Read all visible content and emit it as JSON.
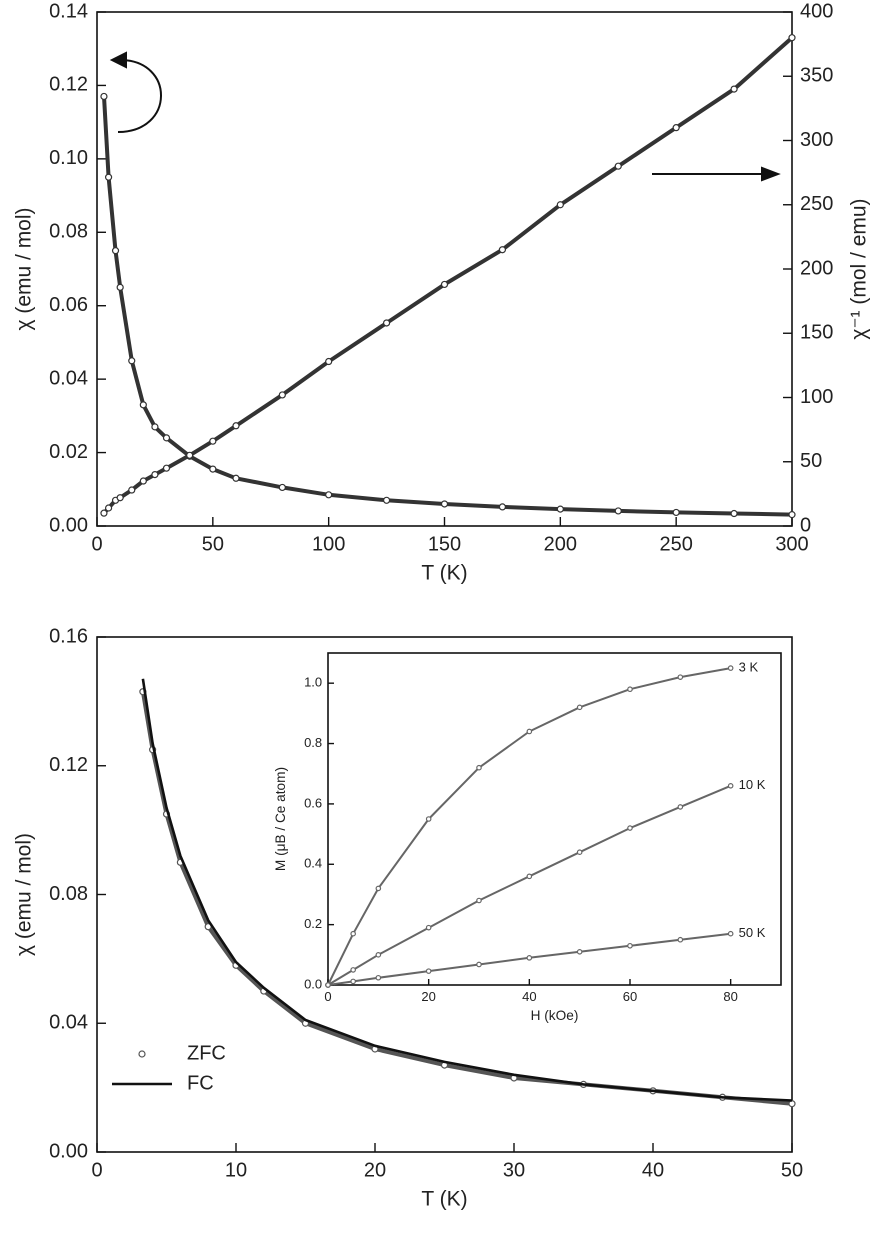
{
  "chart_data": [
    {
      "type": "scatter",
      "xlabel": "T (K)",
      "ylabel": "χ (emu / mol)",
      "y2label": "χ⁻¹ (mol / emu)",
      "xlim": [
        0,
        300
      ],
      "xticks": [
        0,
        50,
        100,
        150,
        200,
        250,
        300
      ],
      "ylim": [
        0,
        0.14
      ],
      "yticks": [
        {
          "value": 0,
          "label": "0.00"
        },
        {
          "value": 0.02,
          "label": "0.02"
        },
        {
          "value": 0.04,
          "label": "0.04"
        },
        {
          "value": 0.06,
          "label": "0.06"
        },
        {
          "value": 0.08,
          "label": "0.08"
        },
        {
          "value": 0.1,
          "label": "0.10"
        },
        {
          "value": 0.12,
          "label": "0.12"
        },
        {
          "value": 0.14,
          "label": "0.14"
        }
      ],
      "y2lim": [
        0,
        400
      ],
      "y2ticks": [
        0,
        50,
        100,
        150,
        200,
        250,
        300,
        350,
        400
      ],
      "x": [
        3,
        5,
        8,
        10,
        15,
        20,
        25,
        30,
        40,
        50,
        60,
        80,
        100,
        125,
        150,
        175,
        200,
        225,
        250,
        275,
        300
      ],
      "series": [
        {
          "mode": "markers",
          "color": "#333333",
          "values": [
            0.117,
            0.095,
            0.075,
            0.065,
            0.045,
            0.033,
            0.027,
            0.024,
            0.019,
            0.0155,
            0.013,
            0.0105,
            0.0085,
            0.007,
            0.006,
            0.0052,
            0.0046,
            0.0041,
            0.0037,
            0.0034,
            0.0031
          ]
        },
        {
          "mode": "markers",
          "color": "#333333",
          "axis": "y2",
          "values": [
            10,
            14,
            20,
            22,
            28,
            35,
            40,
            45,
            55,
            66,
            78,
            102,
            128,
            158,
            188,
            215,
            250,
            280,
            310,
            340,
            380
          ]
        }
      ]
    },
    {
      "type": "scatter",
      "xlabel": "T (K)",
      "ylabel": "χ (emu / mol)",
      "legend": "lower left",
      "xlim": [
        0,
        50
      ],
      "xticks": [
        0,
        10,
        20,
        30,
        40,
        50
      ],
      "ylim": [
        0,
        0.16
      ],
      "yticks": [
        {
          "value": 0,
          "label": "0.00"
        },
        {
          "value": 0.04,
          "label": "0.04"
        },
        {
          "value": 0.08,
          "label": "0.08"
        },
        {
          "value": 0.12,
          "label": "0.12"
        },
        {
          "value": 0.16,
          "label": "0.16"
        }
      ],
      "x": [
        3.3,
        4,
        5,
        6,
        8,
        10,
        12,
        15,
        20,
        25,
        30,
        35,
        40,
        45,
        50
      ],
      "series": [
        {
          "name": "ZFC",
          "mode": "markers",
          "color": "#555555",
          "values": [
            0.143,
            0.125,
            0.105,
            0.09,
            0.07,
            0.058,
            0.05,
            0.04,
            0.032,
            0.027,
            0.023,
            0.021,
            0.019,
            0.017,
            0.015
          ]
        },
        {
          "name": "FC",
          "mode": "line",
          "color": "#111111",
          "values": [
            0.147,
            0.127,
            0.107,
            0.092,
            0.072,
            0.059,
            0.051,
            0.041,
            0.033,
            0.028,
            0.024,
            0.021,
            0.019,
            0.017,
            0.016
          ]
        }
      ]
    },
    {
      "type": "scatter",
      "xlabel": "H (kOe)",
      "ylabel": "M (μB / Ce atom)",
      "legend": "end",
      "xlim": [
        0,
        90
      ],
      "xticks": [
        0,
        20,
        40,
        60,
        80
      ],
      "ylim": [
        0,
        1.1
      ],
      "yticks": [
        {
          "value": 0,
          "label": "0.0"
        },
        {
          "value": 0.2,
          "label": "0.2"
        },
        {
          "value": 0.4,
          "label": "0.4"
        },
        {
          "value": 0.6,
          "label": "0.6"
        },
        {
          "value": 0.8,
          "label": "0.8"
        },
        {
          "value": 1,
          "label": "1.0"
        }
      ],
      "x": [
        0,
        5,
        10,
        20,
        30,
        40,
        50,
        60,
        70,
        80
      ],
      "series": [
        {
          "name": "3 K",
          "mode": "markers",
          "color": "#666666",
          "values": [
            0,
            0.17,
            0.32,
            0.55,
            0.72,
            0.84,
            0.92,
            0.98,
            1.02,
            1.05
          ]
        },
        {
          "name": "10 K",
          "mode": "markers",
          "color": "#666666",
          "values": [
            0,
            0.05,
            0.1,
            0.19,
            0.28,
            0.36,
            0.44,
            0.52,
            0.59,
            0.66
          ]
        },
        {
          "name": "50 K",
          "mode": "markers",
          "color": "#666666",
          "values": [
            0,
            0.012,
            0.024,
            0.046,
            0.068,
            0.09,
            0.11,
            0.13,
            0.15,
            0.17
          ]
        }
      ]
    }
  ]
}
